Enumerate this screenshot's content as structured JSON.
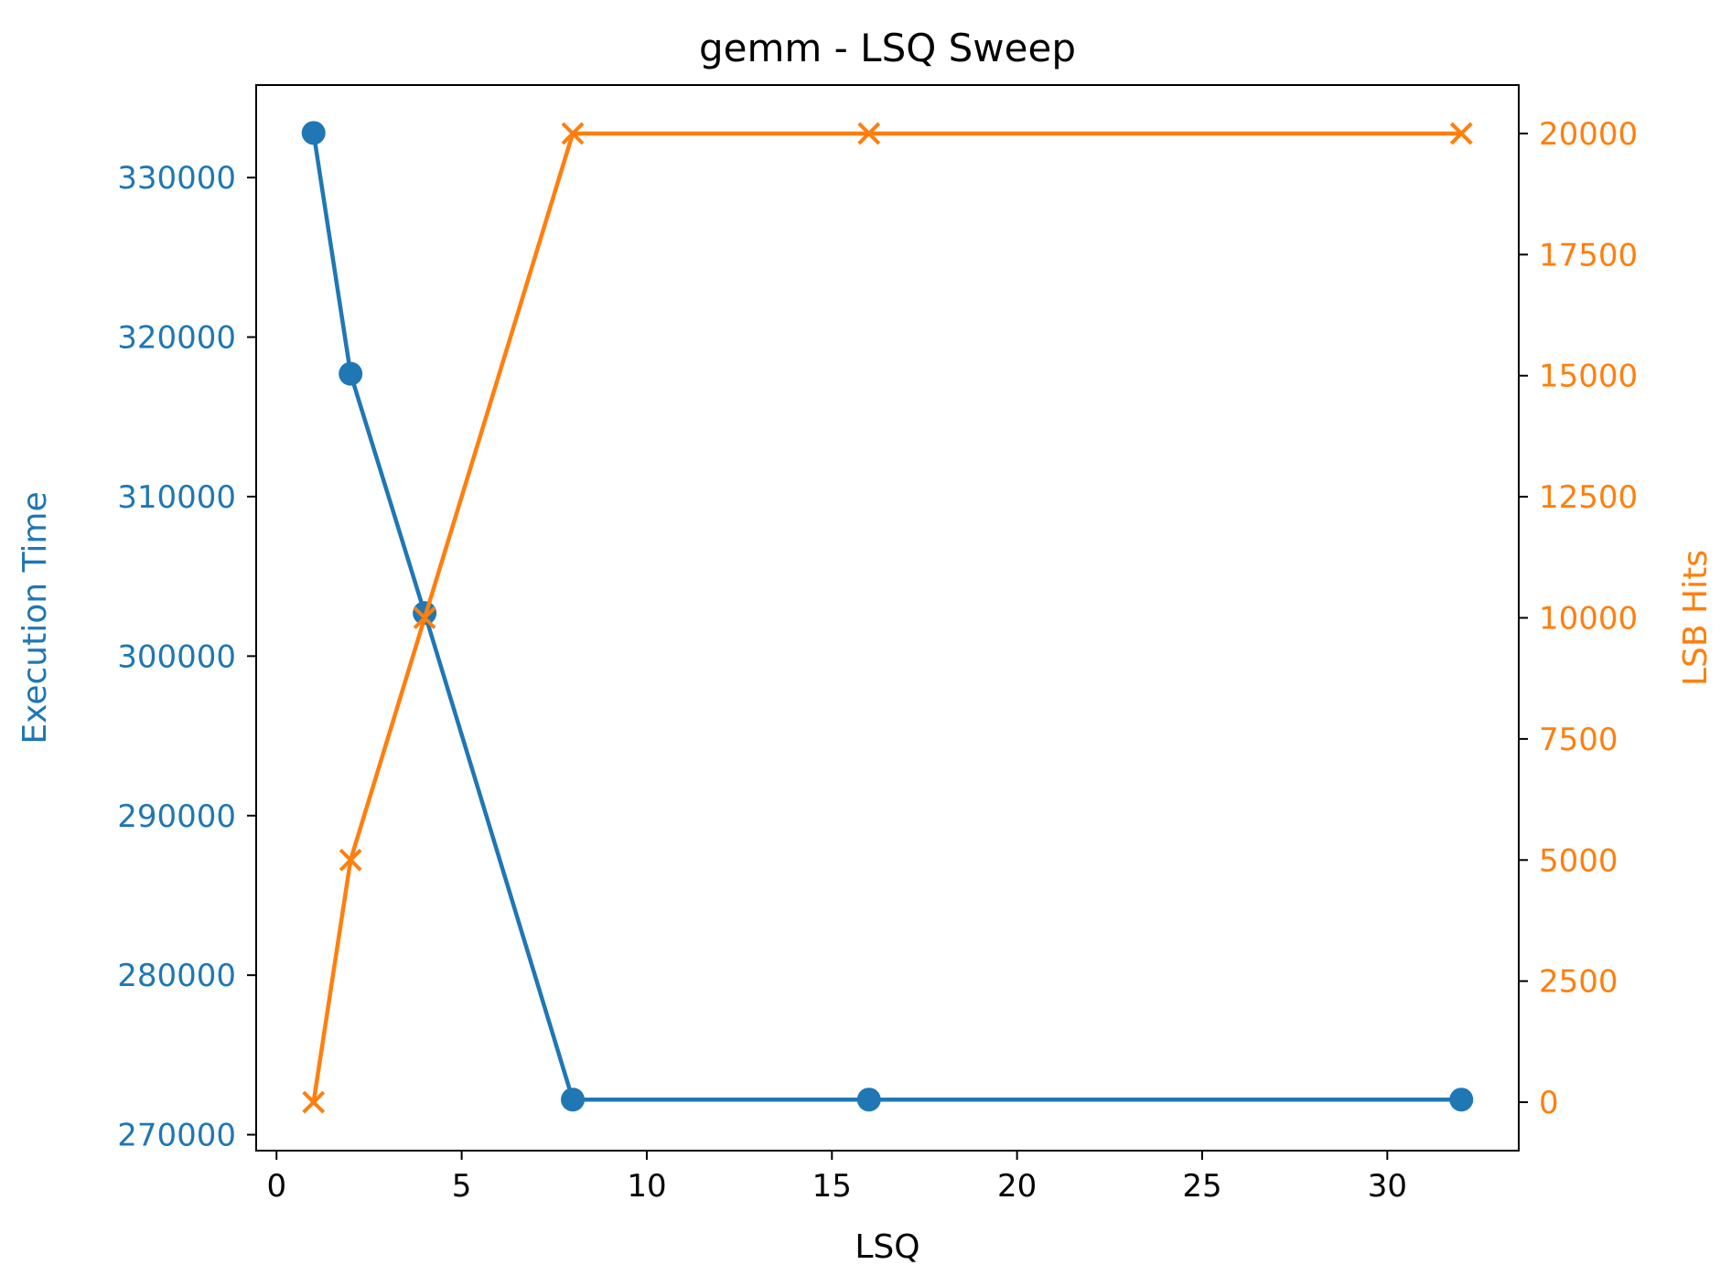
{
  "chart_data": {
    "type": "line",
    "title": "gemm - LSQ Sweep",
    "xlabel": "LSQ",
    "ylabel_left": "Execution Time",
    "ylabel_right": "LSB Hits",
    "x": [
      1,
      2,
      4,
      8,
      16,
      32
    ],
    "xlim": [
      -0.55,
      33.55
    ],
    "xticks": [
      0,
      5,
      10,
      15,
      20,
      25,
      30
    ],
    "y_left_lim": [
      269000,
      335800
    ],
    "y_left_ticks": [
      270000,
      280000,
      290000,
      300000,
      310000,
      320000,
      330000
    ],
    "y_right_lim": [
      -1000,
      21000
    ],
    "y_right_ticks": [
      0,
      2500,
      5000,
      7500,
      10000,
      12500,
      15000,
      17500,
      20000
    ],
    "grid": false,
    "series": [
      {
        "name": "Execution Time",
        "axis": "left",
        "marker": "circle",
        "color": "#1f77b4",
        "values": [
          332800,
          317700,
          302700,
          272200,
          272200,
          272200
        ]
      },
      {
        "name": "LSB Hits",
        "axis": "right",
        "marker": "x",
        "color": "#ff7f0e",
        "values": [
          0,
          5000,
          10000,
          20000,
          20000,
          20000
        ]
      }
    ]
  }
}
